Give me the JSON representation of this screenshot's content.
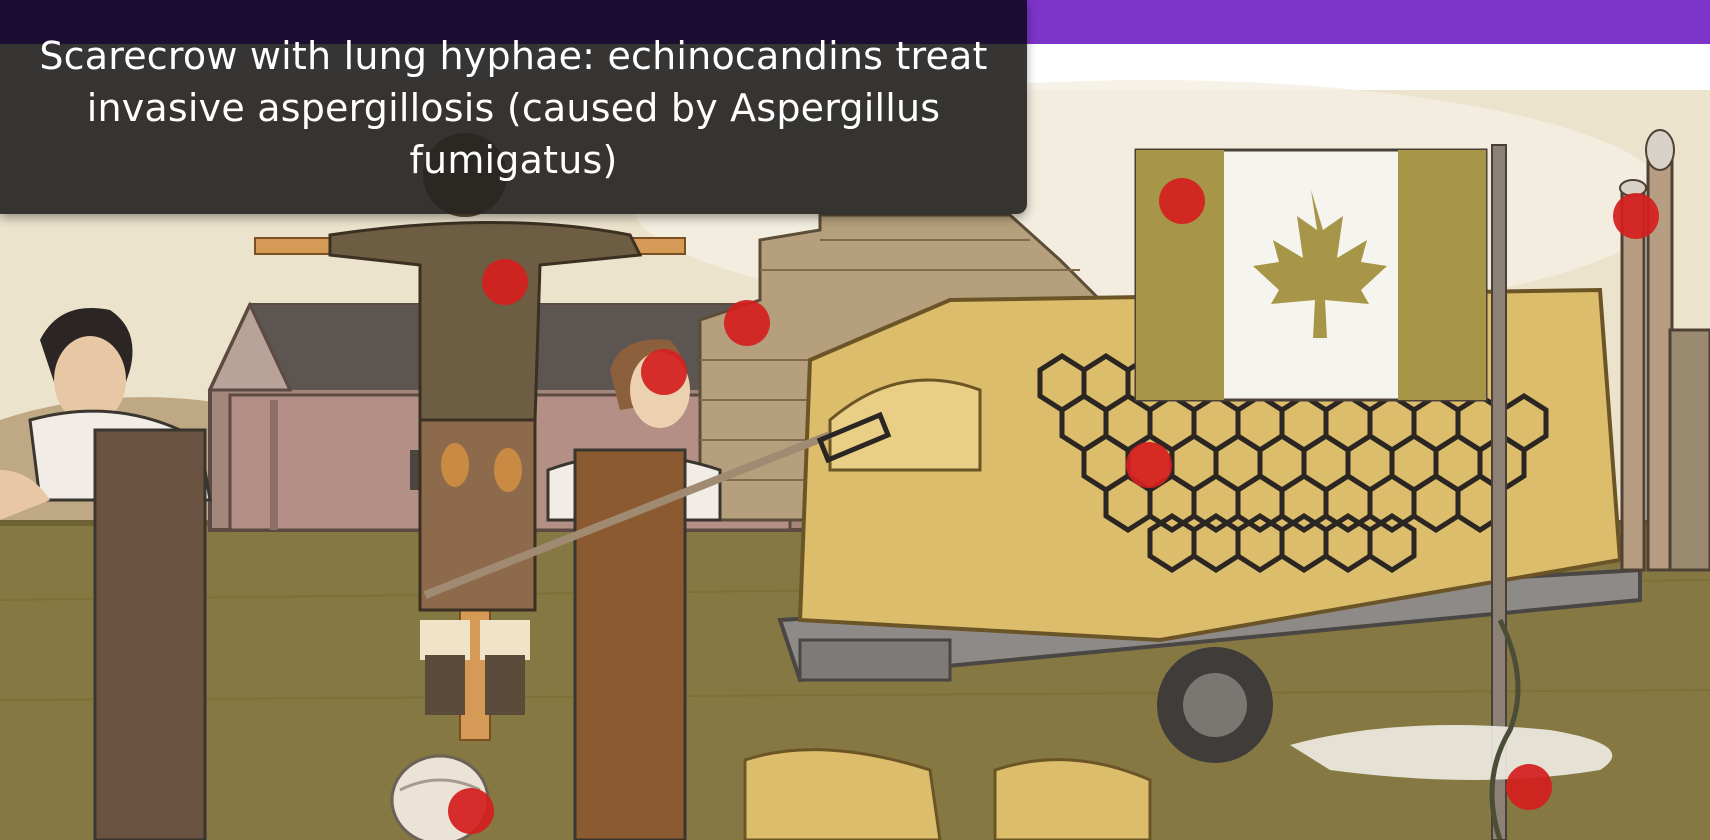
{
  "colors": {
    "purple_bar": "#7d34c8",
    "dark_titlebar": "#1c0d33",
    "tooltip_bg": "#2a2826",
    "hotspot_red": "#d41f1f",
    "sky": "#ede4cf",
    "ground": "#847640"
  },
  "tooltip": {
    "text": "Scarecrow with lung hyphae: echinocandins treat invasive aspergillosis (caused by Aspergillus fumigatus)"
  },
  "hotspots": [
    {
      "name": "scarecrow"
    },
    {
      "name": "brick-stack"
    },
    {
      "name": "farmer-hat"
    },
    {
      "name": "canada-flag"
    },
    {
      "name": "smokestack"
    },
    {
      "name": "hay-bale-honeycomb"
    },
    {
      "name": "vine-plant"
    },
    {
      "name": "bandaged-head"
    }
  ]
}
